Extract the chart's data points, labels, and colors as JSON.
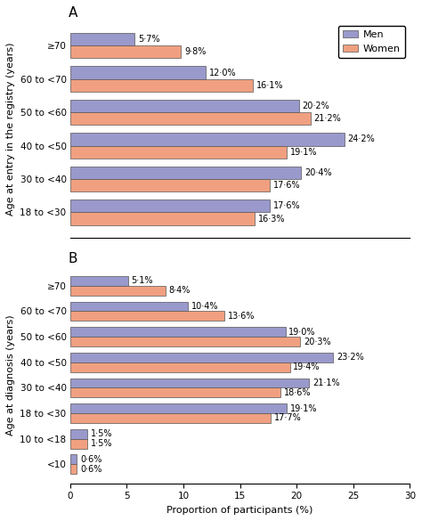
{
  "panel_A": {
    "title": "A",
    "ylabel": "Age at entry in the registry (years)",
    "categories": [
      "≥70",
      "60 to <70",
      "50 to <60",
      "40 to <50",
      "30 to <40",
      "18 to <30"
    ],
    "men": [
      5.7,
      12.0,
      20.2,
      24.2,
      20.4,
      17.6
    ],
    "women": [
      9.8,
      16.1,
      21.2,
      19.1,
      17.6,
      16.3
    ],
    "men_labels": [
      "5·7%",
      "12·0%",
      "20·2%",
      "24·2%",
      "20·4%",
      "17·6%"
    ],
    "women_labels": [
      "9·8%",
      "16·1%",
      "21·2%",
      "19·1%",
      "17·6%",
      "16·3%"
    ]
  },
  "panel_B": {
    "title": "B",
    "ylabel": "Age at diagnosis (years)",
    "categories": [
      "≥70",
      "60 to <70",
      "50 to <60",
      "40 to <50",
      "30 to <40",
      "18 to <30",
      "10 to <18",
      "<10"
    ],
    "men": [
      5.1,
      10.4,
      19.0,
      23.2,
      21.1,
      19.1,
      1.5,
      0.6
    ],
    "women": [
      8.4,
      13.6,
      20.3,
      19.4,
      18.6,
      17.7,
      1.5,
      0.6
    ],
    "men_labels": [
      "5·1%",
      "10·4%",
      "19·0%",
      "23·2%",
      "21·1%",
      "19·1%",
      "1·5%",
      "0·6%"
    ],
    "women_labels": [
      "8·4%",
      "13·6%",
      "20·3%",
      "19·4%",
      "18·6%",
      "17·7%",
      "1·5%",
      "0·6%"
    ]
  },
  "xlabel": "Proportion of participants (%)",
  "xlim": [
    0,
    30
  ],
  "xticks": [
    0,
    5,
    10,
    15,
    20,
    25,
    30
  ],
  "men_color": "#9999cc",
  "women_color": "#f0a080",
  "bar_height": 0.38,
  "label_fontsize": 7,
  "axis_fontsize": 8,
  "tick_fontsize": 7.5,
  "title_fontsize": 11,
  "legend_fontsize": 8
}
